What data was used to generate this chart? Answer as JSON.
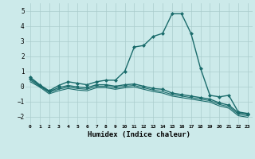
{
  "xlabel": "Humidex (Indice chaleur)",
  "background_color": "#cceaea",
  "grid_color": "#aacccc",
  "line_color": "#1a6b6b",
  "ylim": [
    -2.5,
    5.5
  ],
  "xlim": [
    -0.5,
    23.5
  ],
  "yticks": [
    5,
    4,
    3,
    2,
    1,
    0,
    -1,
    -2
  ],
  "series": [
    {
      "x": [
        0,
        1,
        2,
        3,
        4,
        5,
        6,
        7,
        8,
        9,
        10,
        11,
        12,
        13,
        14,
        15,
        16,
        17,
        18,
        19,
        20,
        21,
        22,
        23
      ],
      "y": [
        0.6,
        0.1,
        -0.3,
        0.05,
        0.3,
        0.2,
        0.1,
        0.3,
        0.4,
        0.4,
        1.0,
        2.6,
        2.7,
        3.3,
        3.5,
        4.8,
        4.8,
        3.5,
        1.2,
        -0.6,
        -0.7,
        -0.6,
        -1.7,
        -1.8
      ],
      "marker": "D",
      "markersize": 2.0,
      "linewidth": 1.0
    },
    {
      "x": [
        0,
        1,
        2,
        3,
        4,
        5,
        6,
        7,
        8,
        9,
        10,
        11,
        12,
        13,
        14,
        15,
        16,
        17,
        18,
        19,
        20,
        21,
        22,
        23
      ],
      "y": [
        0.5,
        0.05,
        -0.35,
        -0.1,
        0.05,
        -0.05,
        -0.1,
        0.1,
        0.1,
        0.0,
        0.1,
        0.15,
        0.0,
        -0.15,
        -0.2,
        -0.45,
        -0.55,
        -0.65,
        -0.75,
        -0.85,
        -1.1,
        -1.25,
        -1.75,
        -1.85
      ],
      "marker": "D",
      "markersize": 2.0,
      "linewidth": 1.0
    },
    {
      "x": [
        0,
        1,
        2,
        3,
        4,
        5,
        6,
        7,
        8,
        9,
        10,
        11,
        12,
        13,
        14,
        15,
        16,
        17,
        18,
        19,
        20,
        21,
        22,
        23
      ],
      "y": [
        0.4,
        0.0,
        -0.4,
        -0.2,
        -0.05,
        -0.15,
        -0.2,
        0.0,
        0.0,
        -0.1,
        0.0,
        0.05,
        -0.1,
        -0.25,
        -0.35,
        -0.55,
        -0.65,
        -0.75,
        -0.85,
        -0.95,
        -1.2,
        -1.35,
        -1.85,
        -1.95
      ],
      "marker": null,
      "markersize": 0,
      "linewidth": 0.8
    },
    {
      "x": [
        0,
        1,
        2,
        3,
        4,
        5,
        6,
        7,
        8,
        9,
        10,
        11,
        12,
        13,
        14,
        15,
        16,
        17,
        18,
        19,
        20,
        21,
        22,
        23
      ],
      "y": [
        0.3,
        -0.05,
        -0.5,
        -0.3,
        -0.15,
        -0.25,
        -0.3,
        -0.1,
        -0.1,
        -0.2,
        -0.1,
        -0.05,
        -0.2,
        -0.35,
        -0.45,
        -0.65,
        -0.75,
        -0.85,
        -0.95,
        -1.05,
        -1.3,
        -1.45,
        -1.95,
        -2.05
      ],
      "marker": null,
      "markersize": 0,
      "linewidth": 0.8
    }
  ]
}
